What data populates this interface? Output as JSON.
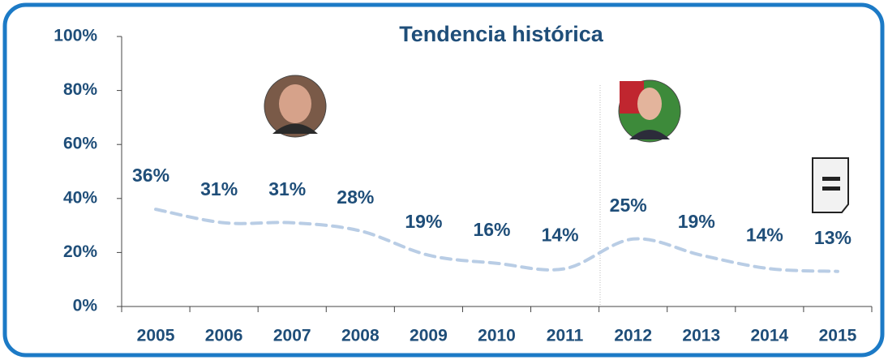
{
  "chart_data": {
    "type": "line",
    "title": "Tendencia histórica",
    "categories": [
      "2005",
      "2006",
      "2007",
      "2008",
      "2009",
      "2010",
      "2011",
      "2012",
      "2013",
      "2014",
      "2015"
    ],
    "series": [
      {
        "color": "#b9cde5",
        "values": [
          36,
          31,
          31,
          28,
          19,
          16,
          14,
          25,
          19,
          14,
          13
        ],
        "value_labels": [
          "36%",
          "31%",
          "31%",
          "28%",
          "19%",
          "16%",
          "14%",
          "25%",
          "19%",
          "14%",
          "13%"
        ]
      }
    ],
    "ylim": [
      0,
      100
    ],
    "yticks": [
      {
        "value": 0,
        "label": "0%"
      },
      {
        "value": 20,
        "label": "20%"
      },
      {
        "value": 40,
        "label": "40%"
      },
      {
        "value": 60,
        "label": "60%"
      },
      {
        "value": 80,
        "label": "80%"
      },
      {
        "value": 100,
        "label": "100%"
      }
    ]
  }
}
